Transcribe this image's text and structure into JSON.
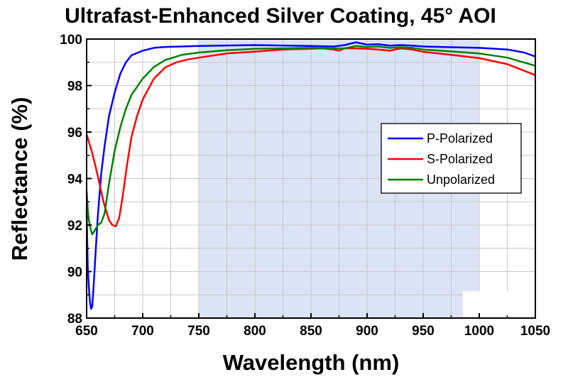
{
  "chart_data": {
    "type": "line",
    "title": "Ultrafast-Enhanced Silver Coating, 45° AOI",
    "xlabel": "Wavelength (nm)",
    "ylabel": "Reflectance (%)",
    "xlim": [
      650,
      1050
    ],
    "ylim": [
      88,
      100
    ],
    "xticks": [
      650,
      700,
      750,
      800,
      850,
      900,
      950,
      1000,
      1050
    ],
    "yticks": [
      88,
      90,
      92,
      94,
      96,
      98,
      100
    ],
    "grid": true,
    "legend_position": "right",
    "highlight_band": {
      "x_start": 750,
      "x_end": 1000,
      "color": "#dbe3f5"
    },
    "series": [
      {
        "name": "P-Polarized",
        "color": "#0000ff",
        "points": [
          [
            650,
            92.6
          ],
          [
            651,
            90.2
          ],
          [
            652,
            89.3
          ],
          [
            653,
            88.7
          ],
          [
            654,
            88.4
          ],
          [
            655,
            88.5
          ],
          [
            656,
            89.2
          ],
          [
            658,
            90.8
          ],
          [
            660,
            92.4
          ],
          [
            663,
            94.2
          ],
          [
            666,
            95.4
          ],
          [
            670,
            96.7
          ],
          [
            675,
            97.7
          ],
          [
            680,
            98.5
          ],
          [
            685,
            99.0
          ],
          [
            690,
            99.3
          ],
          [
            700,
            99.5
          ],
          [
            710,
            99.62
          ],
          [
            720,
            99.66
          ],
          [
            750,
            99.7
          ],
          [
            800,
            99.74
          ],
          [
            850,
            99.7
          ],
          [
            870,
            99.68
          ],
          [
            880,
            99.74
          ],
          [
            890,
            99.86
          ],
          [
            900,
            99.76
          ],
          [
            910,
            99.78
          ],
          [
            920,
            99.72
          ],
          [
            930,
            99.74
          ],
          [
            940,
            99.72
          ],
          [
            950,
            99.68
          ],
          [
            1000,
            99.62
          ],
          [
            1025,
            99.55
          ],
          [
            1040,
            99.42
          ],
          [
            1050,
            99.25
          ]
        ]
      },
      {
        "name": "S-Polarized",
        "color": "#ff0000",
        "points": [
          [
            650,
            95.9
          ],
          [
            655,
            95.1
          ],
          [
            660,
            94.1
          ],
          [
            665,
            93.0
          ],
          [
            670,
            92.2
          ],
          [
            673,
            92.0
          ],
          [
            676,
            91.95
          ],
          [
            679,
            92.3
          ],
          [
            682,
            93.2
          ],
          [
            686,
            94.6
          ],
          [
            690,
            95.8
          ],
          [
            695,
            96.7
          ],
          [
            700,
            97.4
          ],
          [
            710,
            98.3
          ],
          [
            720,
            98.78
          ],
          [
            730,
            99.0
          ],
          [
            740,
            99.12
          ],
          [
            750,
            99.2
          ],
          [
            775,
            99.38
          ],
          [
            800,
            99.46
          ],
          [
            825,
            99.55
          ],
          [
            850,
            99.58
          ],
          [
            860,
            99.6
          ],
          [
            870,
            99.55
          ],
          [
            875,
            99.5
          ],
          [
            880,
            99.6
          ],
          [
            890,
            99.6
          ],
          [
            900,
            99.58
          ],
          [
            910,
            99.55
          ],
          [
            920,
            99.5
          ],
          [
            930,
            99.6
          ],
          [
            940,
            99.55
          ],
          [
            950,
            99.45
          ],
          [
            975,
            99.32
          ],
          [
            1000,
            99.18
          ],
          [
            1025,
            98.92
          ],
          [
            1050,
            98.45
          ]
        ]
      },
      {
        "name": "Unpolarized",
        "color": "#008000",
        "points": [
          [
            650,
            93.5
          ],
          [
            651,
            92.7
          ],
          [
            652,
            92.2
          ],
          [
            654,
            91.75
          ],
          [
            655,
            91.6
          ],
          [
            657,
            91.75
          ],
          [
            660,
            92.0
          ],
          [
            663,
            92.1
          ],
          [
            666,
            92.5
          ],
          [
            670,
            93.8
          ],
          [
            675,
            95.2
          ],
          [
            680,
            96.2
          ],
          [
            685,
            97.0
          ],
          [
            690,
            97.6
          ],
          [
            700,
            98.3
          ],
          [
            710,
            98.8
          ],
          [
            720,
            99.1
          ],
          [
            735,
            99.32
          ],
          [
            750,
            99.42
          ],
          [
            775,
            99.52
          ],
          [
            800,
            99.58
          ],
          [
            825,
            99.6
          ],
          [
            850,
            99.62
          ],
          [
            870,
            99.6
          ],
          [
            880,
            99.6
          ],
          [
            890,
            99.7
          ],
          [
            900,
            99.66
          ],
          [
            910,
            99.68
          ],
          [
            920,
            99.62
          ],
          [
            930,
            99.65
          ],
          [
            940,
            99.62
          ],
          [
            950,
            99.55
          ],
          [
            975,
            99.47
          ],
          [
            1000,
            99.38
          ],
          [
            1025,
            99.2
          ],
          [
            1050,
            98.85
          ]
        ]
      }
    ]
  }
}
